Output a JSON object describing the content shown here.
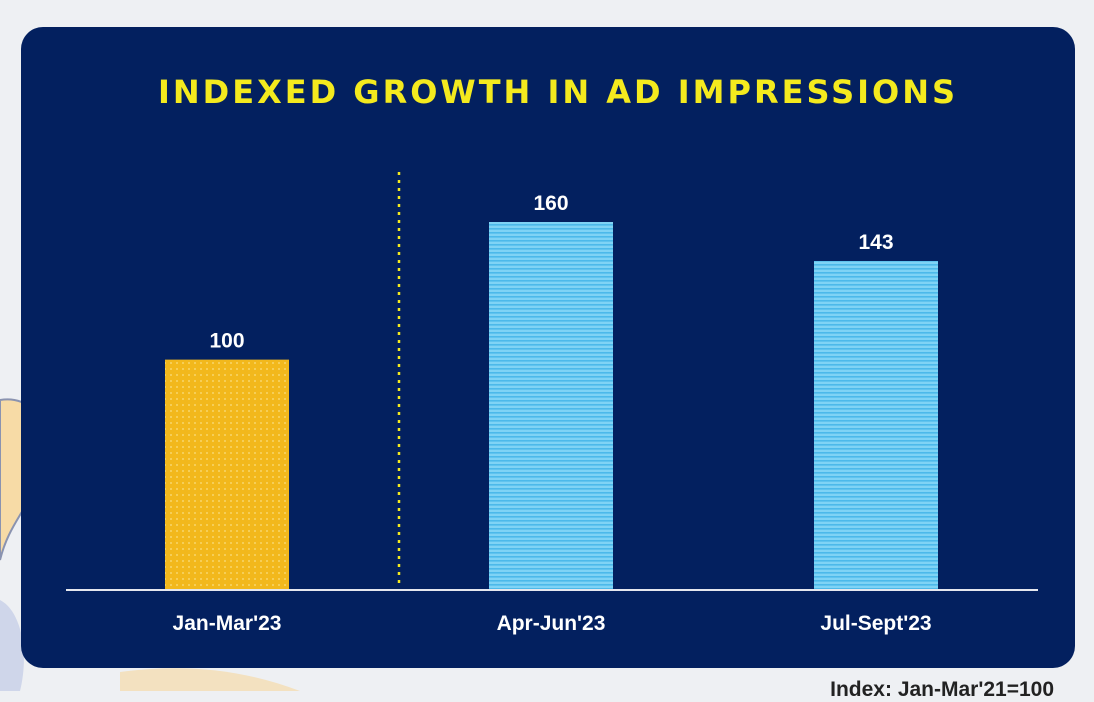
{
  "chart_data": {
    "type": "bar",
    "title": "INDEXED GROWTH IN AD IMPRESSIONS",
    "categories": [
      "Jan-Mar'23",
      "Apr-Jun'23",
      "Jul-Sept'23"
    ],
    "values": [
      100,
      160,
      143
    ],
    "value_labels": [
      "100",
      "160",
      "143"
    ],
    "ylim": [
      0,
      200
    ],
    "xlabel": "",
    "ylabel": "",
    "grid": false,
    "legend": "none",
    "divider_after_category": 0,
    "colors": {
      "baseline_bar": "#f2b81c",
      "growth_bar": "#6ccbf2",
      "background": "#03205f",
      "title": "#f4ea1e",
      "labels": "#ffffff",
      "divider": "#f4ea1e"
    }
  },
  "footnote": "Index: Jan-Mar'21=100"
}
